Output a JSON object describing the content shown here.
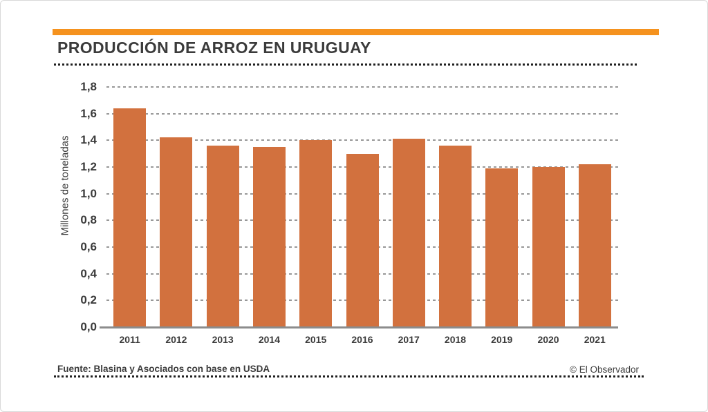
{
  "header": {
    "title": "PRODUCCIÓN DE ARROZ EN URUGUAY"
  },
  "colors": {
    "accent_strip": "#f5921e",
    "bar": "#d2713e",
    "text": "#3b3b3b",
    "grid": "#979797",
    "baseline": "#8c8c8c"
  },
  "chart_data": {
    "type": "bar",
    "title": "PRODUCCIÓN DE ARROZ EN URUGUAY",
    "categories": [
      "2011",
      "2012",
      "2013",
      "2014",
      "2015",
      "2016",
      "2017",
      "2018",
      "2019",
      "2020",
      "2021"
    ],
    "values": [
      1.64,
      1.42,
      1.36,
      1.35,
      1.4,
      1.3,
      1.41,
      1.36,
      1.19,
      1.2,
      1.22
    ],
    "xlabel": "",
    "ylabel": "Millones de toneladas",
    "ylim": [
      0,
      1.8
    ],
    "y_tick_step": 0.2,
    "y_tick_labels": [
      "0,0",
      "0,2",
      "0,4",
      "0,6",
      "0,8",
      "1,0",
      "1,2",
      "1,4",
      "1,6",
      "1,8"
    ],
    "grid": "horizontal dashed, behind bars",
    "legend": "none",
    "bar_color": "#d2713e"
  },
  "footer": {
    "source": "Fuente: Blasina y Asociados con base en USDA",
    "credit": "© El Observador"
  }
}
